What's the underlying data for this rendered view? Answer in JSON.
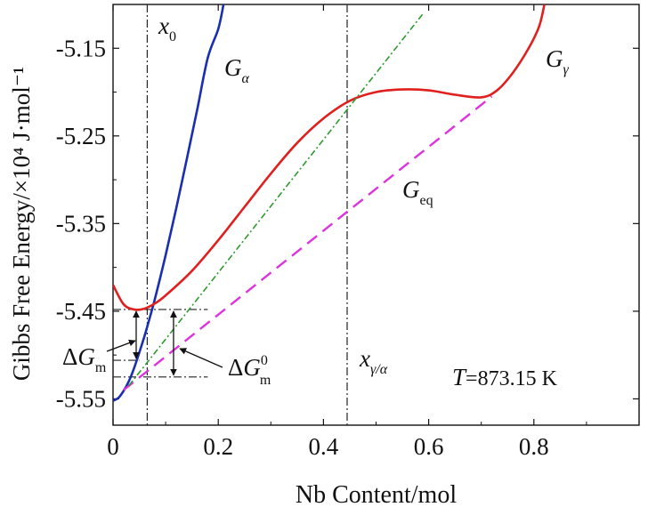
{
  "chart_data": {
    "type": "line",
    "title": "",
    "xlabel": "Nb Content/mol",
    "ylabel": "Gibbs Free Energy/×10⁴ J·mol⁻¹",
    "xlim": [
      0,
      1.0
    ],
    "ylim": [
      -5.58,
      -5.1
    ],
    "xticks": [
      0,
      0.2,
      0.4,
      0.6,
      0.8
    ],
    "xtick_labels": [
      "0",
      "0.2",
      "0.4",
      "0.6",
      "0.8"
    ],
    "yticks": [
      -5.15,
      -5.25,
      -5.35,
      -5.45,
      -5.55
    ],
    "ytick_labels": [
      "-5.15",
      "-5.25",
      "-5.35",
      "-5.45",
      "-5.55"
    ],
    "grid": false,
    "series": [
      {
        "name": "Gα",
        "color": "#1a2fb0",
        "style": "solid",
        "x": [
          0.0,
          0.01,
          0.02,
          0.03,
          0.04,
          0.05,
          0.06,
          0.07,
          0.08,
          0.1,
          0.12,
          0.14,
          0.16,
          0.18,
          0.2,
          0.21
        ],
        "y": [
          -5.552,
          -5.549,
          -5.541,
          -5.53,
          -5.515,
          -5.497,
          -5.478,
          -5.457,
          -5.435,
          -5.386,
          -5.333,
          -5.277,
          -5.22,
          -5.161,
          -5.128,
          -5.1
        ]
      },
      {
        "name": "Gγ",
        "color": "#e0201e",
        "style": "solid",
        "x": [
          0.0,
          0.02,
          0.04,
          0.06,
          0.08,
          0.1,
          0.15,
          0.2,
          0.25,
          0.3,
          0.35,
          0.4,
          0.45,
          0.5,
          0.55,
          0.6,
          0.65,
          0.7,
          0.73,
          0.76,
          0.79,
          0.81,
          0.82
        ],
        "y": [
          -5.42,
          -5.442,
          -5.448,
          -5.447,
          -5.441,
          -5.432,
          -5.404,
          -5.369,
          -5.331,
          -5.293,
          -5.258,
          -5.23,
          -5.21,
          -5.2,
          -5.197,
          -5.198,
          -5.203,
          -5.206,
          -5.198,
          -5.178,
          -5.15,
          -5.125,
          -5.1
        ]
      },
      {
        "name": "Geq",
        "color": "#dd33dd",
        "style": "dashed",
        "x": [
          0.02,
          0.72
        ],
        "y": [
          -5.54,
          -5.205
        ]
      },
      {
        "name": "",
        "color": "#2f9a2f",
        "style": "dashdot",
        "x": [
          0.03,
          0.59
        ],
        "y": [
          -5.535,
          -5.11
        ]
      }
    ],
    "vertical_lines": [
      {
        "x": 0.065,
        "label": "x0",
        "color": "#222222"
      },
      {
        "x": 0.445,
        "label": "xγ/α",
        "color": "#222222"
      }
    ],
    "horizontal_markers": [
      {
        "y": -5.448,
        "x_start": 0.0,
        "x_end": 0.18
      },
      {
        "y": -5.506,
        "x_start": 0.0,
        "x_end": 0.05
      },
      {
        "y": -5.525,
        "x_start": 0.0,
        "x_end": 0.18
      }
    ],
    "annotations": [
      {
        "label": "x",
        "sub": "0",
        "sub_kind": "sub"
      },
      {
        "label": "G",
        "sub": "α",
        "sub_kind": "sub"
      },
      {
        "label": "G",
        "sub": "γ",
        "sub_kind": "sub"
      },
      {
        "label": "G",
        "sub": "eq",
        "sub_kind": "sub"
      },
      {
        "label": "x",
        "sub": "γ/α",
        "sub_kind": "sub"
      },
      {
        "label": "ΔG",
        "sub": "m",
        "sub_kind": "sub"
      },
      {
        "label": "ΔG",
        "sub": "m",
        "sup": "0",
        "sub_kind": "supsub"
      },
      {
        "label": "T=873.15 K"
      }
    ]
  }
}
